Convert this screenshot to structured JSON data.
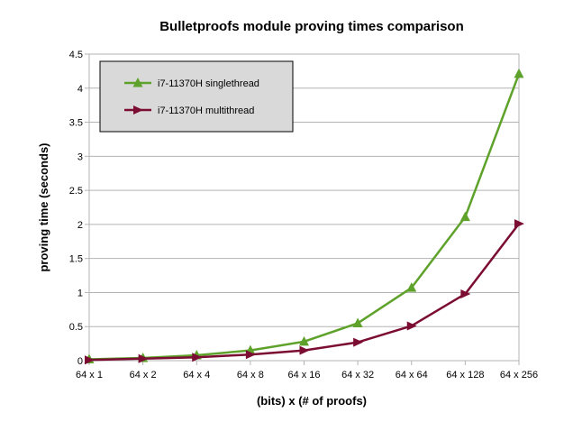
{
  "chart_data": {
    "type": "line",
    "title": "Bulletproofs module proving times comparison",
    "xlabel": "(bits) x (# of proofs)",
    "ylabel": "proving time (seconds)",
    "categories": [
      "64 x 1",
      "64 x 2",
      "64 x 4",
      "64 x 8",
      "64 x 16",
      "64 x 32",
      "64 x 64",
      "64 x 128",
      "64 x 256"
    ],
    "ylim": [
      0,
      4.5
    ],
    "yticks": [
      0,
      0.5,
      1,
      1.5,
      2,
      2.5,
      3,
      3.5,
      4,
      4.5
    ],
    "grid": "horizontal",
    "legend_position": "top-left",
    "series": [
      {
        "name": "i7-11370H singlethread",
        "color": "#5ea22b",
        "marker": "triangle-up",
        "values": [
          0.02,
          0.04,
          0.08,
          0.15,
          0.28,
          0.55,
          1.07,
          2.11,
          4.21
        ]
      },
      {
        "name": "i7-11370H multithread",
        "color": "#7b0c32",
        "marker": "triangle-right",
        "values": [
          0.01,
          0.03,
          0.05,
          0.09,
          0.15,
          0.27,
          0.51,
          0.98,
          2.01
        ]
      }
    ]
  }
}
